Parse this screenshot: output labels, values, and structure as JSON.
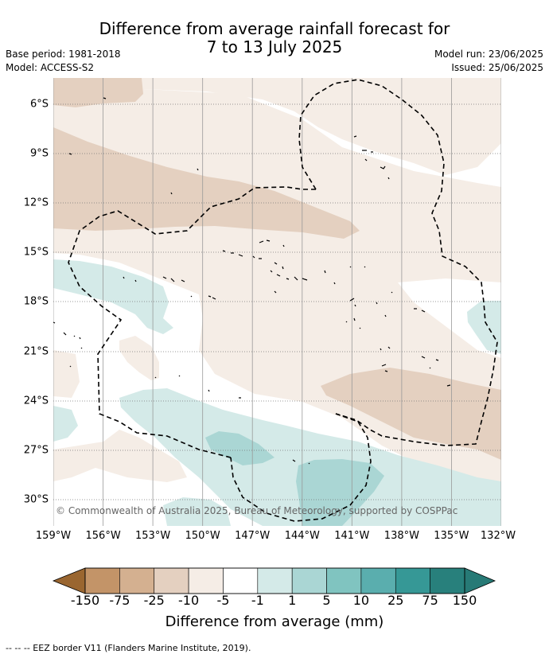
{
  "title": {
    "line1": "Difference from average rainfall forecast for",
    "line2": "7 to 13 July 2025"
  },
  "meta": {
    "base_period": "Base period: 1981-2018",
    "model": "Model: ACCESS-S2",
    "model_run": "Model run: 23/06/2025",
    "issued": "Issued: 25/06/2025"
  },
  "map": {
    "longitude_labels": [
      "159°W",
      "156°W",
      "153°W",
      "150°W",
      "147°W",
      "144°W",
      "141°W",
      "138°W",
      "135°W",
      "132°W"
    ],
    "latitude_labels": [
      "6°S",
      "9°S",
      "12°S",
      "15°S",
      "18°S",
      "21°S",
      "24°S",
      "27°S",
      "30°S"
    ],
    "credit": "© Commonwealth of Australia 2025, Bureau of Meteorology, supported by COSPPac"
  },
  "colorbar": {
    "tick_labels": [
      "-150",
      "-75",
      "-25",
      "-10",
      "-5",
      "-1",
      "1",
      "5",
      "10",
      "25",
      "75",
      "150"
    ],
    "colors": [
      "#b07840",
      "#c39468",
      "#d4b090",
      "#e4d0c0",
      "#f5ede6",
      "#ffffff",
      "#d4eae8",
      "#aad6d4",
      "#80c4c0",
      "#5aaeae",
      "#369896",
      "#28807c"
    ],
    "end_colors": {
      "low": "#9a6630",
      "high": "#277a76"
    },
    "title": "Difference from average (mm)"
  },
  "eez_note": "--  --  -- EEZ border V11 (Flanders Marine Institute, 2019)."
}
